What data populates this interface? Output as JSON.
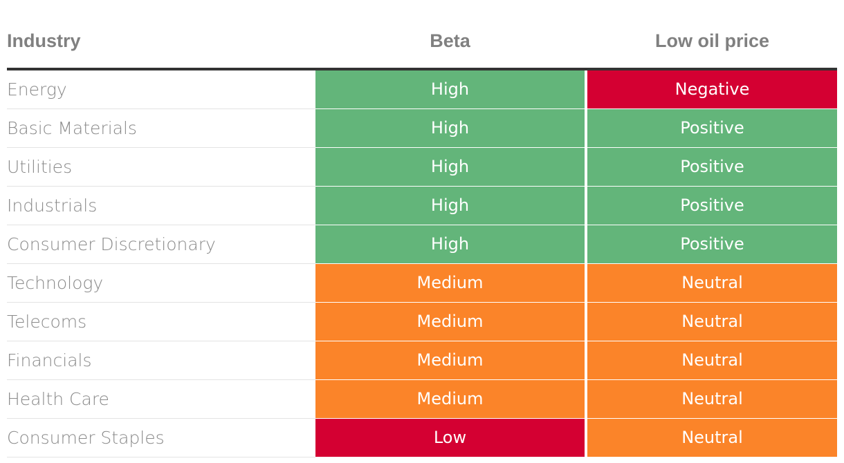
{
  "chart_data": {
    "type": "table",
    "columns": [
      "Industry",
      "Beta",
      "Low oil price"
    ],
    "rows": [
      {
        "industry": "Energy",
        "beta": "High",
        "oil": "Negative"
      },
      {
        "industry": "Basic Materials",
        "beta": "High",
        "oil": "Positive"
      },
      {
        "industry": "Utilities",
        "beta": "High",
        "oil": "Positive"
      },
      {
        "industry": "Industrials",
        "beta": "High",
        "oil": "Positive"
      },
      {
        "industry": "Consumer Discretionary",
        "beta": "High",
        "oil": "Positive"
      },
      {
        "industry": "Technology",
        "beta": "Medium",
        "oil": "Neutral"
      },
      {
        "industry": "Telecoms",
        "beta": "Medium",
        "oil": "Neutral"
      },
      {
        "industry": "Financials",
        "beta": "Medium",
        "oil": "Neutral"
      },
      {
        "industry": "Health Care",
        "beta": "Medium",
        "oil": "Neutral"
      },
      {
        "industry": "Consumer Staples",
        "beta": "Low",
        "oil": "Neutral"
      }
    ],
    "color_map": {
      "High": "#63b57a",
      "Medium": "#fb8429",
      "Low": "#d40032",
      "Positive": "#63b57a",
      "Neutral": "#fb8429",
      "Negative": "#d40032"
    }
  }
}
